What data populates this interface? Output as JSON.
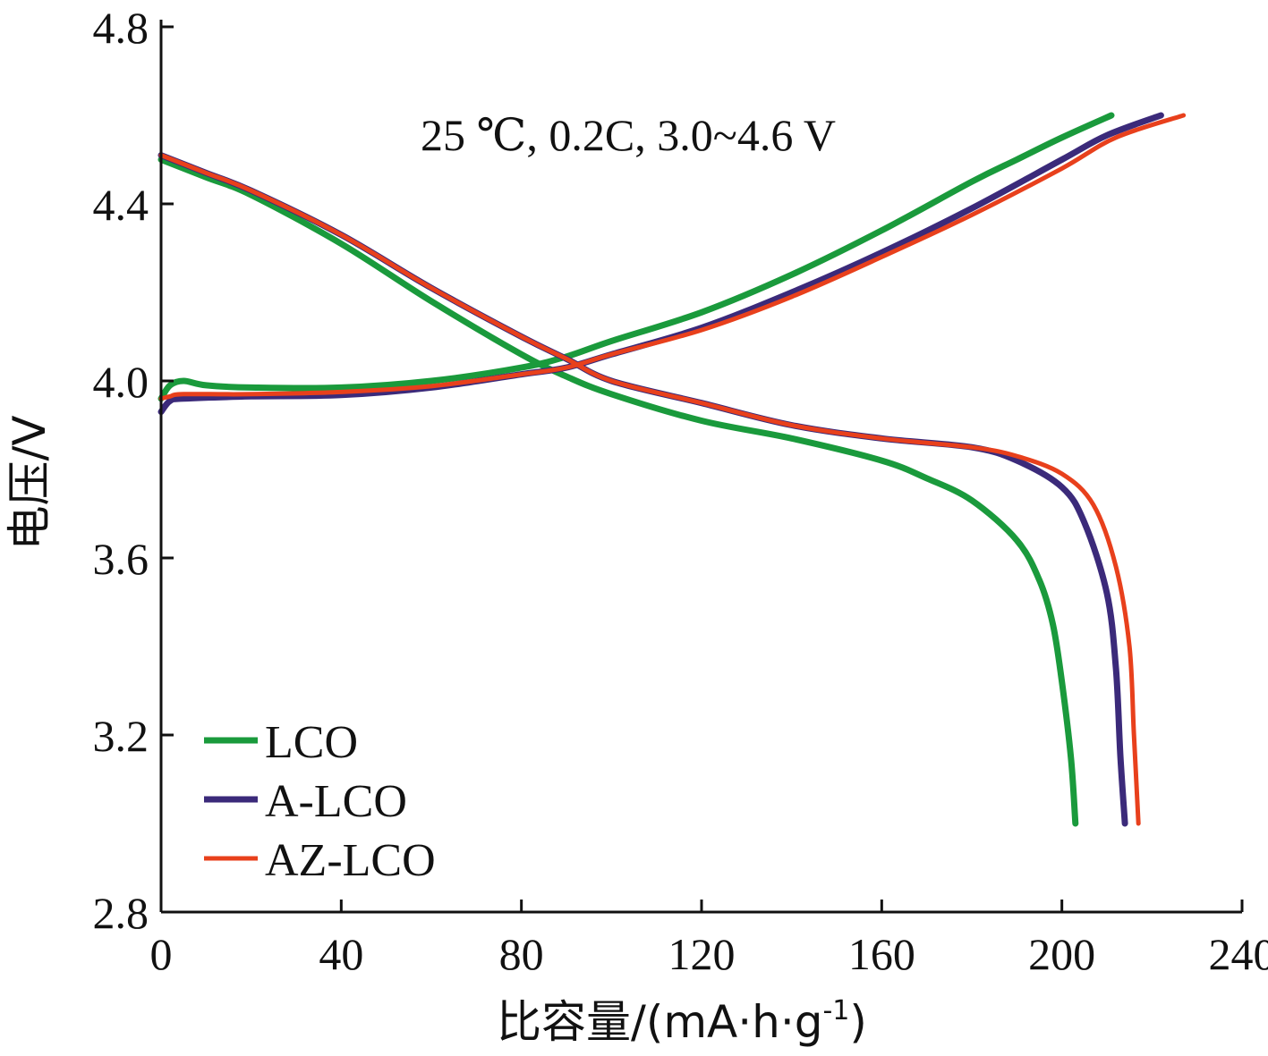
{
  "chart_data": {
    "type": "line",
    "title": "",
    "annotation": "25 ℃, 0.2C, 3.0~4.6 V",
    "xlabel": "比容量/(mA·h·g",
    "xlabel_sup": "-1",
    "xlabel_end": ")",
    "ylabel": "电压/V",
    "xlim": [
      0,
      240
    ],
    "ylim": [
      2.8,
      4.8
    ],
    "xticks": [
      "0",
      "40",
      "80",
      "120",
      "160",
      "200",
      "240"
    ],
    "yticks": [
      "2.8",
      "3.2",
      "3.6",
      "4.0",
      "4.4",
      "4.8"
    ],
    "xtick_values": [
      0,
      40,
      80,
      120,
      160,
      200,
      240
    ],
    "ytick_values": [
      2.8,
      3.2,
      3.6,
      4.0,
      4.4,
      4.8
    ],
    "legend_position": "bottom-left",
    "series": [
      {
        "name": "LCO",
        "color": "#1a9a3c",
        "charge": [
          [
            0,
            3.96
          ],
          [
            2,
            3.99
          ],
          [
            5,
            4.0
          ],
          [
            10,
            3.99
          ],
          [
            20,
            3.985
          ],
          [
            40,
            3.985
          ],
          [
            60,
            4.0
          ],
          [
            80,
            4.03
          ],
          [
            90,
            4.055
          ],
          [
            100,
            4.09
          ],
          [
            120,
            4.155
          ],
          [
            140,
            4.24
          ],
          [
            160,
            4.34
          ],
          [
            180,
            4.45
          ],
          [
            190,
            4.5
          ],
          [
            200,
            4.55
          ],
          [
            211,
            4.6
          ]
        ],
        "discharge": [
          [
            0,
            4.5
          ],
          [
            10,
            4.46
          ],
          [
            20,
            4.42
          ],
          [
            40,
            4.31
          ],
          [
            60,
            4.18
          ],
          [
            80,
            4.06
          ],
          [
            90,
            4.01
          ],
          [
            100,
            3.97
          ],
          [
            120,
            3.91
          ],
          [
            140,
            3.87
          ],
          [
            160,
            3.82
          ],
          [
            170,
            3.78
          ],
          [
            180,
            3.73
          ],
          [
            190,
            3.64
          ],
          [
            195,
            3.55
          ],
          [
            198,
            3.45
          ],
          [
            200,
            3.32
          ],
          [
            202,
            3.15
          ],
          [
            203,
            3.0
          ]
        ]
      },
      {
        "name": "A-LCO",
        "color": "#3b2a7a",
        "charge": [
          [
            0,
            3.93
          ],
          [
            2,
            3.955
          ],
          [
            5,
            3.96
          ],
          [
            20,
            3.965
          ],
          [
            40,
            3.968
          ],
          [
            60,
            3.985
          ],
          [
            80,
            4.015
          ],
          [
            90,
            4.03
          ],
          [
            100,
            4.06
          ],
          [
            120,
            4.12
          ],
          [
            140,
            4.2
          ],
          [
            160,
            4.29
          ],
          [
            180,
            4.39
          ],
          [
            200,
            4.5
          ],
          [
            210,
            4.555
          ],
          [
            222,
            4.6
          ]
        ],
        "discharge": [
          [
            0,
            4.51
          ],
          [
            10,
            4.47
          ],
          [
            20,
            4.43
          ],
          [
            40,
            4.33
          ],
          [
            60,
            4.21
          ],
          [
            80,
            4.1
          ],
          [
            90,
            4.05
          ],
          [
            100,
            4.0
          ],
          [
            120,
            3.95
          ],
          [
            140,
            3.9
          ],
          [
            160,
            3.87
          ],
          [
            180,
            3.85
          ],
          [
            190,
            3.82
          ],
          [
            200,
            3.76
          ],
          [
            205,
            3.68
          ],
          [
            210,
            3.52
          ],
          [
            212,
            3.35
          ],
          [
            213,
            3.15
          ],
          [
            214,
            3.0
          ]
        ]
      },
      {
        "name": "AZ-LCO",
        "color": "#e8401c",
        "charge": [
          [
            0,
            3.96
          ],
          [
            2,
            3.965
          ],
          [
            5,
            3.97
          ],
          [
            20,
            3.97
          ],
          [
            40,
            3.975
          ],
          [
            60,
            3.988
          ],
          [
            80,
            4.015
          ],
          [
            90,
            4.03
          ],
          [
            100,
            4.06
          ],
          [
            120,
            4.115
          ],
          [
            140,
            4.19
          ],
          [
            160,
            4.28
          ],
          [
            180,
            4.375
          ],
          [
            200,
            4.48
          ],
          [
            212,
            4.55
          ],
          [
            227,
            4.6
          ]
        ],
        "discharge": [
          [
            0,
            4.51
          ],
          [
            10,
            4.47
          ],
          [
            20,
            4.43
          ],
          [
            40,
            4.33
          ],
          [
            60,
            4.21
          ],
          [
            80,
            4.1
          ],
          [
            90,
            4.05
          ],
          [
            100,
            4.0
          ],
          [
            120,
            3.95
          ],
          [
            140,
            3.9
          ],
          [
            160,
            3.87
          ],
          [
            180,
            3.85
          ],
          [
            190,
            3.83
          ],
          [
            200,
            3.79
          ],
          [
            207,
            3.72
          ],
          [
            212,
            3.58
          ],
          [
            215,
            3.4
          ],
          [
            216,
            3.2
          ],
          [
            217,
            3.0
          ]
        ]
      }
    ]
  }
}
